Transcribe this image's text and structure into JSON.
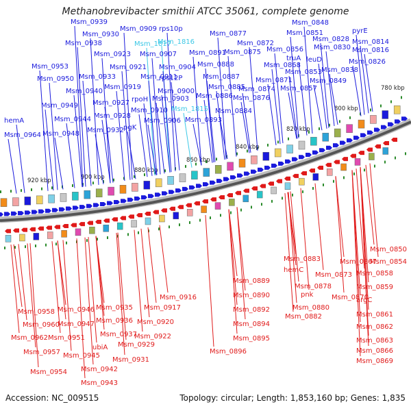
{
  "title": "Methanobrevibacter smithii ATCC 35061, complete genome",
  "footer": {
    "accession": "Accession: NC_009515",
    "topology": "Topology: circular; Length: 1,853,160 bp; Genes: 1,835"
  },
  "colors": {
    "forward": "#1a1adc",
    "reverse": "#e01a1a",
    "highlight": "#3cc8e6",
    "backbone": "#555555",
    "tick": "#2a8a2a"
  },
  "kbp_ticks": [
    {
      "label": "780 kbp"
    },
    {
      "label": "800 kbp"
    },
    {
      "label": "820 kbp"
    },
    {
      "label": "840 kbp"
    },
    {
      "label": "860 kbp"
    },
    {
      "label": "880 kbp"
    },
    {
      "label": "900 kbp"
    },
    {
      "label": "920 kbp"
    }
  ],
  "forward_genes": [
    {
      "name": "Msm_0939"
    },
    {
      "name": "Msm_0930"
    },
    {
      "name": "Msm_0938"
    },
    {
      "name": "Msm_0909"
    },
    {
      "name": "rps10p"
    },
    {
      "name": "Msm_1817"
    },
    {
      "name": "Msm_1816"
    },
    {
      "name": "Msm_0923"
    },
    {
      "name": "Msm_0907"
    },
    {
      "name": "Msm_0891"
    },
    {
      "name": "Msm_0953"
    },
    {
      "name": "Msm_0921"
    },
    {
      "name": "Msm_0904"
    },
    {
      "name": "Msm_0888"
    },
    {
      "name": "Msm_0950"
    },
    {
      "name": "Msm_0933"
    },
    {
      "name": "Msm_0911"
    },
    {
      "name": "rps12P"
    },
    {
      "name": "Msm_0887"
    },
    {
      "name": "Msm_0940"
    },
    {
      "name": "Msm_0919"
    },
    {
      "name": "Msm_0900"
    },
    {
      "name": "Msm_0885"
    },
    {
      "name": "rpoH"
    },
    {
      "name": "Msm_0903"
    },
    {
      "name": "Msm_0886"
    },
    {
      "name": "Msm_0927"
    },
    {
      "name": "Msm_0949"
    },
    {
      "name": "Msm_0910"
    },
    {
      "name": "Msm_1815"
    },
    {
      "name": "Msm_0884"
    },
    {
      "name": "Msm_0928"
    },
    {
      "name": "Msm_0944"
    },
    {
      "name": "Msm_0906"
    },
    {
      "name": "Msm_0893"
    },
    {
      "name": "hemA"
    },
    {
      "name": "pgK"
    },
    {
      "name": "Msm_0932"
    },
    {
      "name": "Msm_0948"
    },
    {
      "name": "Msm_0964"
    },
    {
      "name": "Msm_0877"
    },
    {
      "name": "Msm_0872"
    },
    {
      "name": "Msm_0875"
    },
    {
      "name": "Msm_0868"
    },
    {
      "name": "Msm_0871"
    },
    {
      "name": "Msm_0874"
    },
    {
      "name": "Msm_0876"
    },
    {
      "name": "Msm_0848"
    },
    {
      "name": "Msm_0851"
    },
    {
      "name": "Msm_0856"
    },
    {
      "name": "truA"
    },
    {
      "name": "Msm_0853"
    },
    {
      "name": "Msm_0857"
    },
    {
      "name": "leuD"
    },
    {
      "name": "Msm_0849"
    },
    {
      "name": "Msm_0828"
    },
    {
      "name": "Msm_0830"
    },
    {
      "name": "pyrE"
    },
    {
      "name": "Msm_0814"
    },
    {
      "name": "Msm_0816"
    },
    {
      "name": "Msm_0826"
    },
    {
      "name": "Msm_0838"
    }
  ],
  "reverse_genes": [
    {
      "name": "Msm_0850"
    },
    {
      "name": "Msm_0854"
    },
    {
      "name": "Msm_0883"
    },
    {
      "name": "Msm_0867"
    },
    {
      "name": "Msm_0858"
    },
    {
      "name": "hemC"
    },
    {
      "name": "Msm_0878"
    },
    {
      "name": "Msm_0873"
    },
    {
      "name": "Msm_0859"
    },
    {
      "name": "Msm_0889"
    },
    {
      "name": "pnk"
    },
    {
      "name": "Msm_0870"
    },
    {
      "name": "argC"
    },
    {
      "name": "Msm_0916"
    },
    {
      "name": "Msm_0890"
    },
    {
      "name": "Msm_0880"
    },
    {
      "name": "Msm_0882"
    },
    {
      "name": "Msm_0861"
    },
    {
      "name": "Msm_0892"
    },
    {
      "name": "Msm_0935"
    },
    {
      "name": "Msm_0917"
    },
    {
      "name": "Msm_0958"
    },
    {
      "name": "Msm_0946"
    },
    {
      "name": "Msm_0894"
    },
    {
      "name": "Msm_0862"
    },
    {
      "name": "Msm_0936"
    },
    {
      "name": "Msm_0920"
    },
    {
      "name": "Msm_0960"
    },
    {
      "name": "Msm_0947"
    },
    {
      "name": "Msm_0863"
    },
    {
      "name": "Msm_0895"
    },
    {
      "name": "Msm_0962"
    },
    {
      "name": "Msm_0951"
    },
    {
      "name": "Msm_0937"
    },
    {
      "name": "Msm_0922"
    },
    {
      "name": "Msm_0866"
    },
    {
      "name": "ubiA"
    },
    {
      "name": "Msm_0929"
    },
    {
      "name": "Msm_0957"
    },
    {
      "name": "Msm_0896"
    },
    {
      "name": "Msm_0945"
    },
    {
      "name": "Msm_0931"
    },
    {
      "name": "Msm_0869"
    },
    {
      "name": "Msm_0954"
    },
    {
      "name": "Msm_0942"
    },
    {
      "name": "Msm_0943"
    }
  ]
}
